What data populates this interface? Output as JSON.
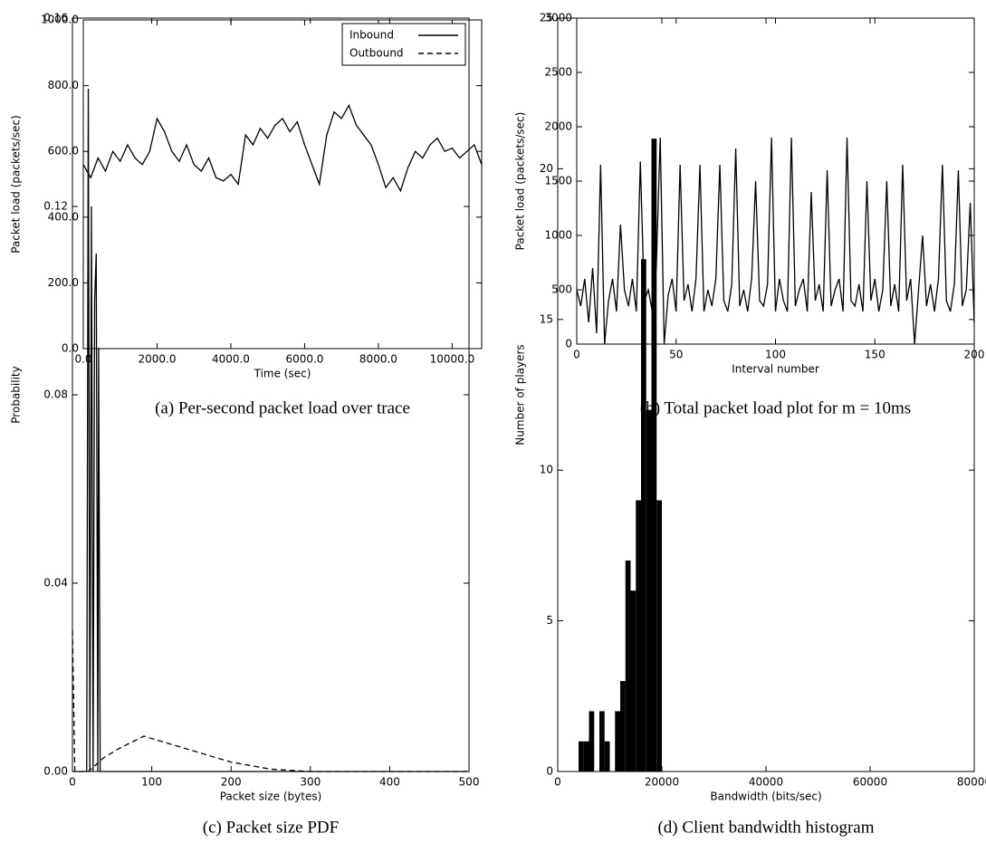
{
  "chart_data": [
    {
      "type": "line",
      "caption": "(a) Per-second packet load over trace",
      "xlabel": "Time (sec)",
      "ylabel": "Packet load (packets/sec)",
      "color": "#000000",
      "x": [
        0,
        200,
        400,
        600,
        800,
        1000,
        1200,
        1400,
        1600,
        1800,
        2000,
        2200,
        2400,
        2600,
        2800,
        3000,
        3200,
        3400,
        3600,
        3800,
        4000,
        4200,
        4400,
        4600,
        4800,
        5000,
        5200,
        5400,
        5600,
        5800,
        6000,
        6200,
        6400,
        6600,
        6800,
        7000,
        7200,
        7400,
        7600,
        7800,
        8000,
        8200,
        8400,
        8600,
        8800,
        9000,
        9200,
        9400,
        9600,
        9800,
        10000,
        10200,
        10400,
        10600,
        10800
      ],
      "values": [
        560,
        520,
        580,
        540,
        600,
        570,
        620,
        580,
        560,
        600,
        700,
        660,
        600,
        570,
        620,
        560,
        540,
        580,
        520,
        510,
        530,
        500,
        650,
        620,
        670,
        640,
        680,
        700,
        660,
        690,
        620,
        560,
        500,
        650,
        720,
        700,
        740,
        680,
        650,
        620,
        560,
        490,
        520,
        480,
        550,
        600,
        580,
        620,
        640,
        600,
        610,
        580,
        600,
        620,
        560
      ],
      "xlim": [
        0,
        10800
      ],
      "ylim": [
        0,
        1000
      ],
      "xticks": [
        {
          "value": 0,
          "label": "0.0"
        },
        {
          "value": 2000,
          "label": "2000.0"
        },
        {
          "value": 4000,
          "label": "4000.0"
        },
        {
          "value": 6000,
          "label": "6000.0"
        },
        {
          "value": 8000,
          "label": "8000.0"
        },
        {
          "value": 10000,
          "label": "10000.0"
        }
      ],
      "yticks": [
        {
          "value": 0,
          "label": "0.0"
        },
        {
          "value": 200,
          "label": "200.0"
        },
        {
          "value": 400,
          "label": "400.0"
        },
        {
          "value": 600,
          "label": "600.0"
        },
        {
          "value": 800,
          "label": "800.0"
        },
        {
          "value": 1000,
          "label": "1000.0"
        }
      ]
    },
    {
      "type": "line",
      "caption": "(b) Total packet load plot for m = 10ms",
      "xlabel": "Interval number",
      "ylabel": "Packet load (packets/sec)",
      "color": "#000000",
      "x": [
        0,
        2,
        4,
        6,
        8,
        10,
        12,
        14,
        16,
        18,
        20,
        22,
        24,
        26,
        28,
        30,
        32,
        34,
        36,
        38,
        40,
        42,
        44,
        46,
        48,
        50,
        52,
        54,
        56,
        58,
        60,
        62,
        64,
        66,
        68,
        70,
        72,
        74,
        76,
        78,
        80,
        82,
        84,
        86,
        88,
        90,
        92,
        94,
        96,
        98,
        100,
        102,
        104,
        106,
        108,
        110,
        112,
        114,
        116,
        118,
        120,
        122,
        124,
        126,
        128,
        130,
        132,
        134,
        136,
        138,
        140,
        142,
        144,
        146,
        148,
        150,
        152,
        154,
        156,
        158,
        160,
        162,
        164,
        166,
        168,
        170,
        172,
        174,
        176,
        178,
        180,
        182,
        184,
        186,
        188,
        190,
        192,
        194,
        196,
        198,
        200
      ],
      "values": [
        500,
        350,
        600,
        200,
        700,
        100,
        1650,
        0,
        400,
        600,
        300,
        1100,
        500,
        350,
        600,
        300,
        1680,
        400,
        500,
        300,
        700,
        1900,
        0,
        450,
        600,
        300,
        1650,
        400,
        550,
        300,
        600,
        1650,
        300,
        500,
        350,
        600,
        1650,
        400,
        300,
        550,
        1800,
        350,
        500,
        300,
        600,
        1500,
        400,
        350,
        550,
        1900,
        300,
        600,
        400,
        300,
        1900,
        350,
        500,
        600,
        300,
        1400,
        400,
        550,
        300,
        1600,
        350,
        500,
        600,
        300,
        1900,
        400,
        350,
        550,
        300,
        1500,
        400,
        600,
        300,
        500,
        1500,
        350,
        550,
        300,
        1650,
        400,
        600,
        0,
        500,
        1000,
        350,
        550,
        300,
        600,
        1650,
        400,
        300,
        550,
        1600,
        350,
        500,
        1300,
        200
      ],
      "xlim": [
        0,
        200
      ],
      "ylim": [
        0,
        3000
      ],
      "xticks": [
        0,
        50,
        100,
        150,
        200
      ],
      "yticks": [
        0,
        500,
        1000,
        1500,
        2000,
        2500,
        3000
      ]
    },
    {
      "type": "line",
      "caption": "(c) Packet size PDF",
      "xlabel": "Packet size (bytes)",
      "ylabel": "Probability",
      "legend": "upper right",
      "series": [
        {
          "name": "Inbound",
          "color": "#000000",
          "linestyle": "solid",
          "x": [
            0,
            18,
            20,
            22,
            24,
            26,
            28,
            30,
            32,
            33,
            35,
            500
          ],
          "values": [
            0,
            0,
            0.145,
            0,
            0.12,
            0,
            0.1,
            0.11,
            0,
            0.09,
            0,
            0
          ]
        },
        {
          "name": "Outbound",
          "color": "#000000",
          "linestyle": "dashed",
          "x": [
            0,
            3,
            20,
            40,
            60,
            90,
            120,
            160,
            200,
            250,
            300,
            500
          ],
          "values": [
            0.03,
            0,
            0,
            0.003,
            0.005,
            0.0075,
            0.006,
            0.004,
            0.002,
            0.0005,
            0,
            0
          ]
        }
      ],
      "xlim": [
        0,
        500
      ],
      "ylim": [
        0,
        0.16
      ],
      "xticks": [
        0,
        100,
        200,
        300,
        400,
        500
      ],
      "yticks": [
        {
          "value": 0,
          "label": "0.00"
        },
        {
          "value": 0.04,
          "label": "0.04"
        },
        {
          "value": 0.08,
          "label": "0.08"
        },
        {
          "value": 0.12,
          "label": "0.12"
        },
        {
          "value": 0.16,
          "label": "0.16"
        }
      ]
    },
    {
      "type": "histogram",
      "caption": "(d) Client bandwidth histogram",
      "xlabel": "Bandwidth (bits/sec)",
      "ylabel": "Number of players",
      "color": "#000000",
      "bins": [
        4000,
        5000,
        6000,
        7000,
        8000,
        9000,
        10000,
        11000,
        12000,
        13000,
        14000,
        15000,
        16000,
        17000,
        18000,
        19000,
        20000
      ],
      "values": [
        1,
        1,
        2,
        0,
        2,
        1,
        0,
        2,
        3,
        7,
        6,
        9,
        17,
        12,
        21,
        9
      ],
      "xlim": [
        0,
        80000
      ],
      "ylim": [
        0,
        25
      ],
      "xticks": [
        0,
        20000,
        40000,
        60000,
        80000
      ],
      "yticks": [
        0,
        5,
        10,
        15,
        20,
        25
      ]
    }
  ]
}
